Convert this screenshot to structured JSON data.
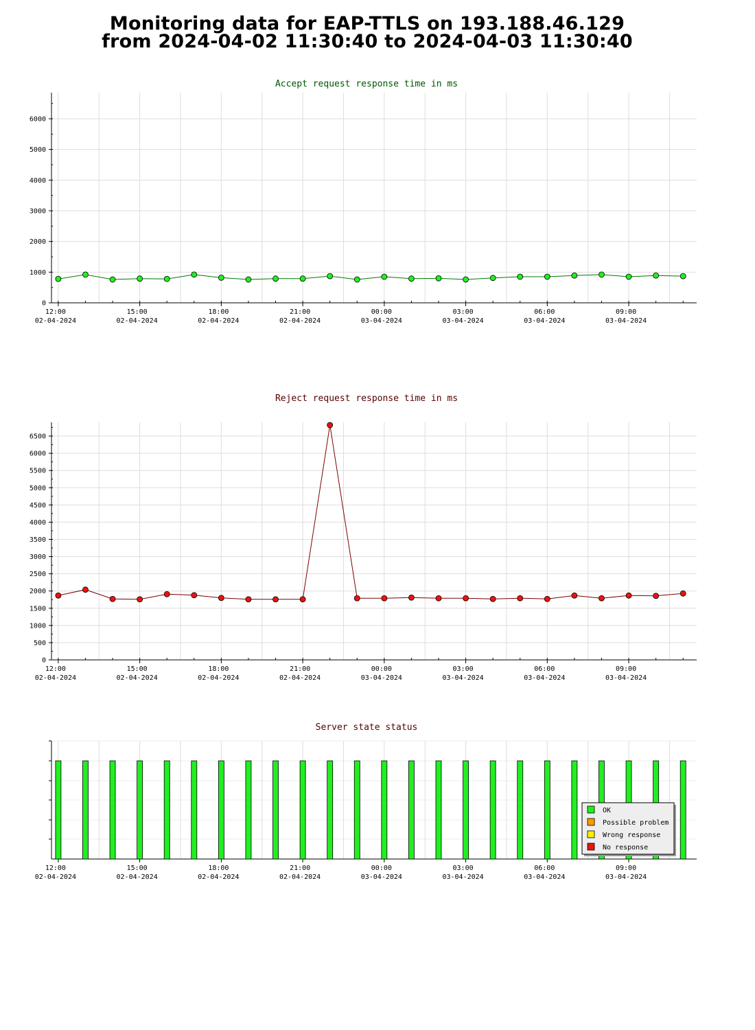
{
  "page": {
    "title_line1": "Monitoring data for EAP-TTLS on 193.188.46.129",
    "title_line2": "from 2024-04-02 11:30:40 to 2024-04-03 11:30:40"
  },
  "colors": {
    "accept_line": "#007a00",
    "accept_marker": "#22ee22",
    "reject_line": "#7a0000",
    "reject_marker": "#ee1111",
    "accept_title": "#005500",
    "reject_title": "#550000",
    "status_title": "#550000",
    "grid": "#dddddd",
    "ok": "#22ee22",
    "possible_problem": "#ff9900",
    "wrong_response": "#ffee00",
    "no_response": "#ee1111"
  },
  "chart_data": [
    {
      "type": "line",
      "title": "Accept request response time in ms",
      "x_ticks": [
        {
          "time": "12:00",
          "date": "02-04-2024"
        },
        {
          "time": "15:00",
          "date": "02-04-2024"
        },
        {
          "time": "18:00",
          "date": "02-04-2024"
        },
        {
          "time": "21:00",
          "date": "02-04-2024"
        },
        {
          "time": "00:00",
          "date": "03-04-2024"
        },
        {
          "time": "03:00",
          "date": "03-04-2024"
        },
        {
          "time": "06:00",
          "date": "03-04-2024"
        },
        {
          "time": "09:00",
          "date": "03-04-2024"
        }
      ],
      "x_range": [
        "2024-04-02 11:45",
        "2024-04-03 11:30"
      ],
      "x": [
        "2024-04-02 12:00",
        "2024-04-02 13:00",
        "2024-04-02 14:00",
        "2024-04-02 15:00",
        "2024-04-02 16:00",
        "2024-04-02 17:00",
        "2024-04-02 18:00",
        "2024-04-02 19:00",
        "2024-04-02 20:00",
        "2024-04-02 21:00",
        "2024-04-02 22:00",
        "2024-04-02 23:00",
        "2024-04-03 00:00",
        "2024-04-03 01:00",
        "2024-04-03 02:00",
        "2024-04-03 03:00",
        "2024-04-03 04:00",
        "2024-04-03 05:00",
        "2024-04-03 06:00",
        "2024-04-03 07:00",
        "2024-04-03 08:00",
        "2024-04-03 09:00",
        "2024-04-03 10:00",
        "2024-04-03 11:00"
      ],
      "y": [
        780,
        920,
        760,
        790,
        780,
        920,
        820,
        760,
        790,
        790,
        870,
        760,
        850,
        790,
        800,
        760,
        810,
        850,
        850,
        890,
        920,
        850,
        890,
        870
      ],
      "ylim": [
        0,
        6850
      ],
      "y_ticks": [
        0,
        1000,
        2000,
        3000,
        4000,
        5000,
        6000
      ],
      "grid": true
    },
    {
      "type": "line",
      "title": "Reject request response time in ms",
      "x_ticks": [
        {
          "time": "12:00",
          "date": "02-04-2024"
        },
        {
          "time": "15:00",
          "date": "02-04-2024"
        },
        {
          "time": "18:00",
          "date": "02-04-2024"
        },
        {
          "time": "21:00",
          "date": "02-04-2024"
        },
        {
          "time": "00:00",
          "date": "03-04-2024"
        },
        {
          "time": "03:00",
          "date": "03-04-2024"
        },
        {
          "time": "06:00",
          "date": "03-04-2024"
        },
        {
          "time": "09:00",
          "date": "03-04-2024"
        }
      ],
      "x_range": [
        "2024-04-02 11:45",
        "2024-04-03 11:30"
      ],
      "x": [
        "2024-04-02 12:00",
        "2024-04-02 13:00",
        "2024-04-02 14:00",
        "2024-04-02 15:00",
        "2024-04-02 16:00",
        "2024-04-02 17:00",
        "2024-04-02 18:00",
        "2024-04-02 19:00",
        "2024-04-02 20:00",
        "2024-04-02 21:00",
        "2024-04-02 22:00",
        "2024-04-02 23:00",
        "2024-04-03 00:00",
        "2024-04-03 01:00",
        "2024-04-03 02:00",
        "2024-04-03 03:00",
        "2024-04-03 04:00",
        "2024-04-03 05:00",
        "2024-04-03 06:00",
        "2024-04-03 07:00",
        "2024-04-03 08:00",
        "2024-04-03 09:00",
        "2024-04-03 10:00",
        "2024-04-03 11:00"
      ],
      "y": [
        1870,
        2040,
        1770,
        1760,
        1910,
        1880,
        1800,
        1760,
        1760,
        1760,
        6820,
        1790,
        1790,
        1810,
        1790,
        1790,
        1770,
        1790,
        1770,
        1870,
        1790,
        1870,
        1860,
        1930
      ],
      "ylim": [
        0,
        6900
      ],
      "y_ticks": [
        0,
        500,
        1000,
        1500,
        2000,
        2500,
        3000,
        3500,
        4000,
        4500,
        5000,
        5500,
        6000,
        6500
      ],
      "grid": true
    },
    {
      "type": "bar",
      "title": "Server state status",
      "x_ticks": [
        {
          "time": "12:00",
          "date": "02-04-2024"
        },
        {
          "time": "15:00",
          "date": "02-04-2024"
        },
        {
          "time": "18:00",
          "date": "02-04-2024"
        },
        {
          "time": "21:00",
          "date": "02-04-2024"
        },
        {
          "time": "00:00",
          "date": "03-04-2024"
        },
        {
          "time": "03:00",
          "date": "03-04-2024"
        },
        {
          "time": "06:00",
          "date": "03-04-2024"
        },
        {
          "time": "09:00",
          "date": "03-04-2024"
        }
      ],
      "x_range": [
        "2024-04-02 11:45",
        "2024-04-03 11:30"
      ],
      "x": [
        "2024-04-02 12:00",
        "2024-04-02 13:00",
        "2024-04-02 14:00",
        "2024-04-02 15:00",
        "2024-04-02 16:00",
        "2024-04-02 17:00",
        "2024-04-02 18:00",
        "2024-04-02 19:00",
        "2024-04-02 20:00",
        "2024-04-02 21:00",
        "2024-04-02 22:00",
        "2024-04-02 23:00",
        "2024-04-03 00:00",
        "2024-04-03 01:00",
        "2024-04-03 02:00",
        "2024-04-03 03:00",
        "2024-04-03 04:00",
        "2024-04-03 05:00",
        "2024-04-03 06:00",
        "2024-04-03 07:00",
        "2024-04-03 08:00",
        "2024-04-03 09:00",
        "2024-04-03 10:00",
        "2024-04-03 11:00"
      ],
      "states": [
        "OK",
        "OK",
        "OK",
        "OK",
        "OK",
        "OK",
        "OK",
        "OK",
        "OK",
        "OK",
        "OK",
        "OK",
        "OK",
        "OK",
        "OK",
        "OK",
        "OK",
        "OK",
        "OK",
        "OK",
        "OK",
        "OK",
        "OK",
        "OK"
      ],
      "legend": {
        "placement": "bottom-right",
        "entries": [
          {
            "key": "OK",
            "label": "OK"
          },
          {
            "key": "possible_problem",
            "label": "Possible problem"
          },
          {
            "key": "wrong_response",
            "label": "Wrong response"
          },
          {
            "key": "no_response",
            "label": "No response"
          }
        ]
      }
    }
  ]
}
